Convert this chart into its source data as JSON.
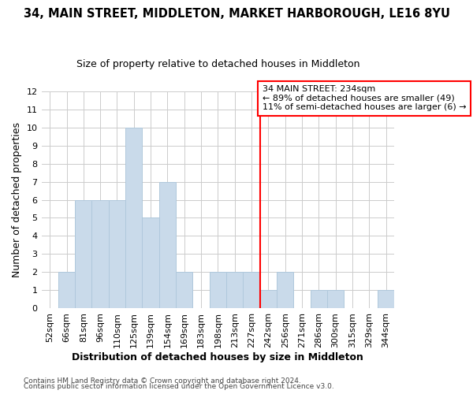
{
  "title": "34, MAIN STREET, MIDDLETON, MARKET HARBOROUGH, LE16 8YU",
  "subtitle": "Size of property relative to detached houses in Middleton",
  "xlabel": "Distribution of detached houses by size in Middleton",
  "ylabel": "Number of detached properties",
  "bin_labels": [
    "52sqm",
    "66sqm",
    "81sqm",
    "96sqm",
    "110sqm",
    "125sqm",
    "139sqm",
    "154sqm",
    "169sqm",
    "183sqm",
    "198sqm",
    "213sqm",
    "227sqm",
    "242sqm",
    "256sqm",
    "271sqm",
    "286sqm",
    "300sqm",
    "315sqm",
    "329sqm",
    "344sqm"
  ],
  "bar_values": [
    0,
    2,
    6,
    6,
    6,
    10,
    5,
    7,
    2,
    0,
    2,
    2,
    2,
    1,
    2,
    0,
    1,
    1,
    0,
    0,
    1
  ],
  "bar_color": "#c9daea",
  "bar_edgecolor": "#b0c8dc",
  "vline_x_index": 13,
  "vline_color": "red",
  "annotation_text": "34 MAIN STREET: 234sqm\n← 89% of detached houses are smaller (49)\n11% of semi-detached houses are larger (6) →",
  "annotation_box_color": "white",
  "annotation_box_edgecolor": "red",
  "ylim": [
    0,
    12
  ],
  "yticks": [
    0,
    1,
    2,
    3,
    4,
    5,
    6,
    7,
    8,
    9,
    10,
    11,
    12
  ],
  "footer1": "Contains HM Land Registry data © Crown copyright and database right 2024.",
  "footer2": "Contains public sector information licensed under the Open Government Licence v3.0.",
  "bg_color": "#ffffff",
  "plot_bg_color": "#ffffff",
  "grid_color": "#cccccc",
  "title_fontsize": 10.5,
  "subtitle_fontsize": 9,
  "tick_fontsize": 8,
  "ylabel_fontsize": 9,
  "xlabel_fontsize": 9
}
